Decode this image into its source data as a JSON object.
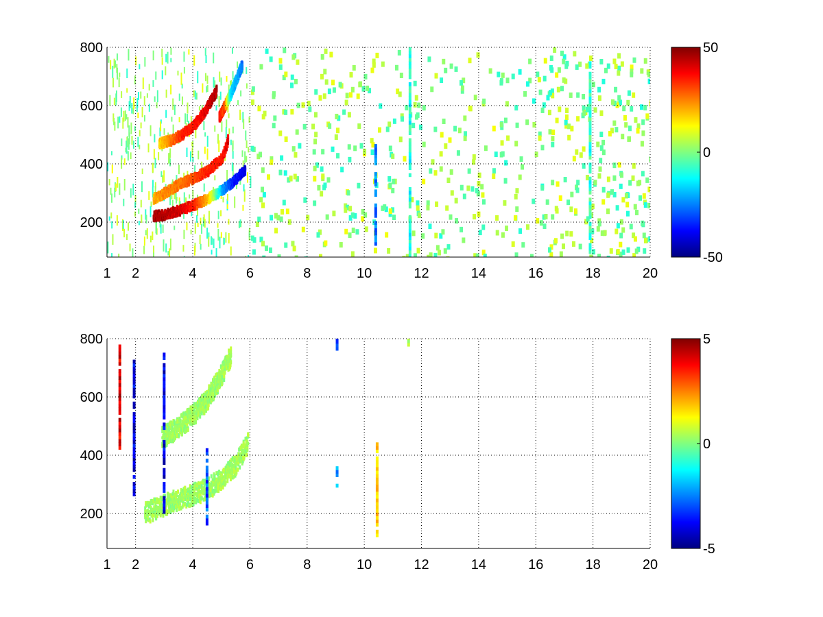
{
  "chart_data": [
    {
      "type": "heatmap",
      "title": "",
      "xlabel": "",
      "ylabel": "",
      "xlim": [
        1,
        20
      ],
      "ylim": [
        80,
        800
      ],
      "x_ticks": [
        1,
        2,
        4,
        6,
        8,
        10,
        12,
        14,
        16,
        18,
        20
      ],
      "y_ticks": [
        200,
        400,
        600,
        800
      ],
      "grid": true,
      "colorbar": {
        "colormap": "jet",
        "min": -50,
        "max": 50,
        "ticks": [
          50,
          0,
          -50
        ]
      },
      "features": [
        {
          "kind": "curve",
          "description": "lower band",
          "x": [
            2.6,
            3.0,
            3.5,
            4.0,
            4.5,
            5.0,
            5.4,
            5.8
          ],
          "y": [
            220,
            225,
            240,
            258,
            280,
            310,
            340,
            380
          ],
          "values": [
            45,
            45,
            42,
            35,
            20,
            -20,
            -35,
            -40
          ]
        },
        {
          "kind": "curve",
          "description": "lower band upper edge",
          "x": [
            2.6,
            3.0,
            3.5,
            4.0,
            4.5,
            5.0,
            5.2
          ],
          "y": [
            280,
            300,
            330,
            350,
            375,
            420,
            480
          ],
          "values": [
            20,
            25,
            25,
            30,
            35,
            35,
            40
          ]
        },
        {
          "kind": "curve",
          "description": "upper band",
          "x": [
            2.8,
            3.2,
            3.6,
            4.0,
            4.4,
            4.8
          ],
          "y": [
            470,
            480,
            500,
            530,
            580,
            650
          ],
          "values": [
            15,
            25,
            35,
            35,
            40,
            45
          ]
        },
        {
          "kind": "curve",
          "description": "upper band extension",
          "x": [
            4.9,
            5.1,
            5.3,
            5.5,
            5.7
          ],
          "y": [
            560,
            600,
            640,
            690,
            740
          ],
          "values": [
            35,
            30,
            -15,
            -20,
            -25
          ]
        },
        {
          "kind": "column",
          "x": 10.4,
          "y_range": [
            120,
            460
          ],
          "value": -25
        },
        {
          "kind": "column",
          "x": 17.9,
          "y_range": [
            80,
            750
          ],
          "value": -8
        },
        {
          "kind": "column",
          "x": 11.6,
          "y_range": [
            80,
            800
          ],
          "value": -10
        }
      ]
    },
    {
      "type": "heatmap",
      "title": "",
      "xlabel": "",
      "ylabel": "",
      "xlim": [
        1,
        20
      ],
      "ylim": [
        80,
        800
      ],
      "x_ticks": [
        1,
        2,
        4,
        6,
        8,
        10,
        12,
        14,
        16,
        18,
        20
      ],
      "y_ticks": [
        200,
        400,
        600,
        800
      ],
      "grid": true,
      "colorbar": {
        "colormap": "jet",
        "min": -5,
        "max": 5,
        "ticks": [
          5,
          0,
          -5
        ]
      },
      "features": [
        {
          "kind": "band",
          "description": "lower band",
          "x": [
            2.3,
            3.0,
            3.5,
            4.0,
            4.5,
            5.0,
            5.5,
            5.9
          ],
          "y": [
            200,
            230,
            250,
            265,
            285,
            320,
            370,
            440
          ],
          "value": 0.3
        },
        {
          "kind": "band",
          "description": "upper band",
          "x": [
            2.9,
            3.4,
            3.9,
            4.4,
            4.9,
            5.3
          ],
          "y": [
            460,
            490,
            530,
            580,
            660,
            740
          ],
          "value": 0.3
        },
        {
          "kind": "column",
          "x": 10.45,
          "y_range": [
            120,
            440
          ],
          "value": 1.5
        },
        {
          "kind": "column",
          "x": 1.45,
          "y_range": [
            420,
            780
          ],
          "value": 4
        },
        {
          "kind": "column",
          "x": 1.95,
          "y_range": [
            260,
            720
          ],
          "value": -4
        },
        {
          "kind": "column",
          "x": 3.0,
          "y_range": [
            200,
            760
          ],
          "value": -4
        },
        {
          "kind": "column",
          "x": 4.5,
          "y_range": [
            160,
            420
          ],
          "value": -3
        },
        {
          "kind": "column",
          "x": 9.05,
          "y_range": [
            290,
            360
          ],
          "value": -2
        },
        {
          "kind": "column",
          "x": 9.05,
          "y_range": [
            760,
            800
          ],
          "value": -3
        },
        {
          "kind": "column",
          "x": 11.55,
          "y_range": [
            750,
            800
          ],
          "value": 0.5
        }
      ]
    }
  ]
}
